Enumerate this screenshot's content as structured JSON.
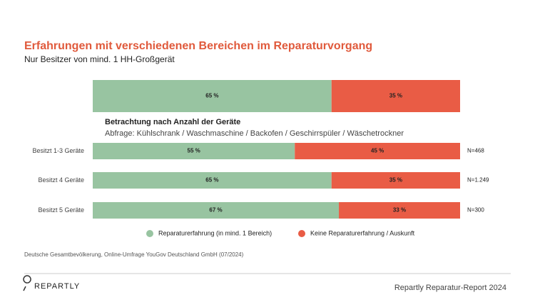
{
  "chart_data": {
    "type": "stacked-bar-horizontal",
    "title": "Erfahrungen mit verschiedenen Bereichen im Reparaturvorgang",
    "subtitle": "Nur Besitzer von mind. 1 HH-Großgerät",
    "section_title": "Betrachtung nach Anzahl der Geräte",
    "section_subtitle": "Abfrage: Kühlschrank / Waschmaschine / Backofen / Geschirrspüler / Wäschetrockner",
    "categories": [
      null,
      "Besitzt 1-3 Geräte",
      "Besitzt 4 Geräte",
      "Besitzt 5 Geräte"
    ],
    "annotations": [
      null,
      "N=468",
      "N=1.249",
      "N=300"
    ],
    "series": [
      {
        "name": "Reparaturerfahrung (in mind. 1 Bereich)",
        "color": "#98c4a1",
        "values": [
          65,
          55,
          65,
          67
        ],
        "value_labels": [
          "65 %",
          "55 %",
          "65 %",
          "67 %"
        ]
      },
      {
        "name": "Keine Reparaturerfahrung / Auskunft",
        "color": "#e95c45",
        "values": [
          35,
          45,
          35,
          33
        ],
        "value_labels": [
          "35 %",
          "45 %",
          "35 %",
          "33 %"
        ]
      }
    ],
    "source": "Deutsche Gesamtbevölkerung, Online-Umfrage YouGov Deutschland GmbH (07/2024)",
    "brand": "REPARTLY",
    "report": "Repartly Reparatur-Report 2024"
  }
}
